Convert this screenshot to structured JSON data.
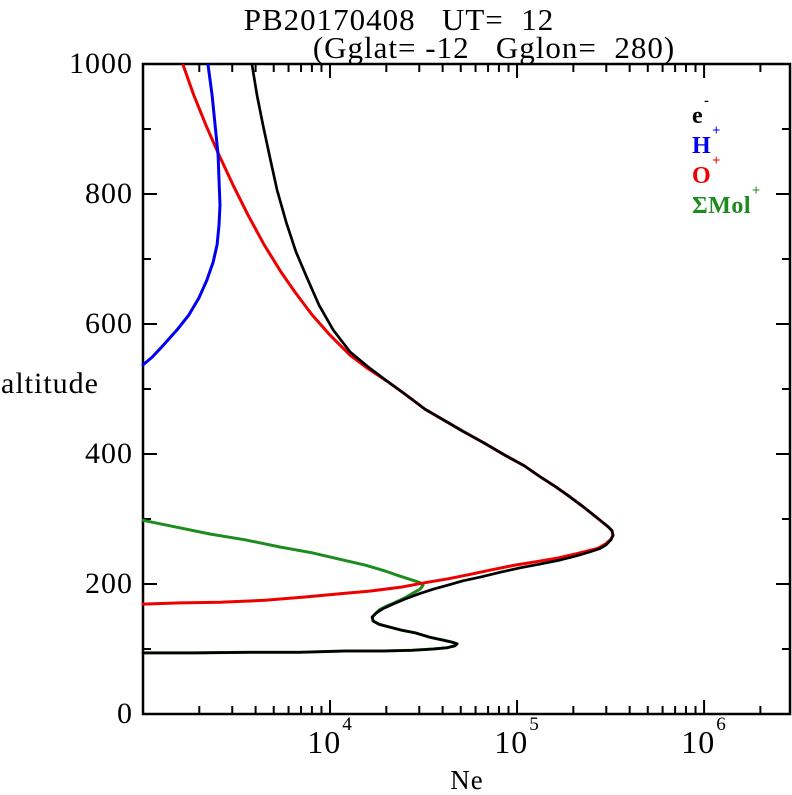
{
  "title": {
    "line1": "PB20170408   UT=  12",
    "line2": "(Gglat= -12   Gglon=  280)"
  },
  "axes": {
    "x": {
      "label": "Ne",
      "scale": "log",
      "range": [
        1000,
        2880000
      ],
      "major_ticks": [
        {
          "value": 10000,
          "base": "10",
          "exp": "4"
        },
        {
          "value": 100000,
          "base": "10",
          "exp": "5"
        },
        {
          "value": 1000000,
          "base": "10",
          "exp": "6"
        }
      ]
    },
    "y": {
      "label": "altitude",
      "range": [
        0,
        1000
      ],
      "major_tick_step": 200,
      "minor_tick_step": 100,
      "ticks": [
        {
          "value": 1000,
          "label": "1000"
        },
        {
          "value": 800,
          "label": "800"
        },
        {
          "value": 600,
          "label": "600"
        },
        {
          "value": 400,
          "label": "400"
        },
        {
          "value": 200,
          "label": "200"
        },
        {
          "value": 0,
          "label": "0"
        }
      ]
    }
  },
  "legend": {
    "position": "top-right",
    "items": [
      {
        "text": "e",
        "sup": "-",
        "color": "#000000"
      },
      {
        "text": "H",
        "sup": "+",
        "color": "#0000ee"
      },
      {
        "text": "O",
        "sup": "+",
        "color": "#ee0000"
      },
      {
        "text": "ΣMol",
        "sup": "+",
        "color": "#1e8b1e"
      }
    ]
  },
  "chart_data": {
    "type": "line",
    "title": "PB20170408   UT=  12",
    "subtitle": "(Gglat= -12   Gglon=  280)",
    "xlabel": "Ne",
    "ylabel": "altitude",
    "x_scale": "log",
    "xlim": [
      1000,
      2880000
    ],
    "ylim": [
      0,
      1000
    ],
    "grid": false,
    "legend_position": "top-right",
    "series": [
      {
        "name": "e-",
        "color": "#000000",
        "stroke_width": 2.7,
        "points_format": [
          "Ne_cm3",
          "altitude_km"
        ],
        "points": [
          [
            3830,
            998
          ],
          [
            4070,
            952
          ],
          [
            4380,
            906
          ],
          [
            4780,
            855
          ],
          [
            5210,
            806
          ],
          [
            5820,
            757
          ],
          [
            6580,
            711
          ],
          [
            7530,
            671
          ],
          [
            8730,
            629
          ],
          [
            10400,
            591
          ],
          [
            12800,
            557
          ],
          [
            16000,
            534
          ],
          [
            20200,
            512
          ],
          [
            25200,
            492
          ],
          [
            32200,
            469
          ],
          [
            41200,
            451
          ],
          [
            51400,
            435
          ],
          [
            66600,
            417
          ],
          [
            86300,
            398
          ],
          [
            109000,
            382
          ],
          [
            133000,
            365
          ],
          [
            162000,
            349
          ],
          [
            192000,
            334
          ],
          [
            223000,
            320
          ],
          [
            252000,
            308
          ],
          [
            281000,
            297
          ],
          [
            307000,
            288
          ],
          [
            322000,
            282
          ],
          [
            326000,
            275
          ],
          [
            318000,
            268
          ],
          [
            299000,
            260
          ],
          [
            275000,
            254
          ],
          [
            243000,
            249
          ],
          [
            207000,
            243
          ],
          [
            170000,
            237
          ],
          [
            134000,
            231
          ],
          [
            104000,
            225
          ],
          [
            81100,
            218
          ],
          [
            64100,
            211
          ],
          [
            51400,
            205
          ],
          [
            42300,
            198
          ],
          [
            35600,
            192
          ],
          [
            29900,
            185
          ],
          [
            25200,
            177
          ],
          [
            21700,
            169
          ],
          [
            19200,
            162
          ],
          [
            17600,
            155
          ],
          [
            16800,
            149
          ],
          [
            17000,
            143
          ],
          [
            18300,
            138
          ],
          [
            20700,
            134
          ],
          [
            24000,
            129
          ],
          [
            28500,
            125
          ],
          [
            34300,
            118
          ],
          [
            39700,
            114
          ],
          [
            44400,
            111
          ],
          [
            47800,
            108
          ],
          [
            46600,
            105
          ],
          [
            42300,
            102
          ],
          [
            35600,
            100
          ],
          [
            27500,
            98
          ],
          [
            19000,
            97
          ],
          [
            12000,
            97
          ],
          [
            6920,
            95
          ],
          [
            3730,
            95
          ],
          [
            1900,
            94
          ],
          [
            1000,
            94
          ]
        ]
      },
      {
        "name": "H+",
        "color": "#0000ee",
        "stroke_width": 3,
        "points_format": [
          "Ne_cm3",
          "altitude_km"
        ],
        "points": [
          [
            2230,
            998
          ],
          [
            2340,
            952
          ],
          [
            2430,
            906
          ],
          [
            2520,
            860
          ],
          [
            2550,
            822
          ],
          [
            2580,
            783
          ],
          [
            2550,
            752
          ],
          [
            2490,
            722
          ],
          [
            2370,
            695
          ],
          [
            2200,
            668
          ],
          [
            1990,
            640
          ],
          [
            1760,
            614
          ],
          [
            1520,
            591
          ],
          [
            1290,
            568
          ],
          [
            1120,
            549
          ],
          [
            1000,
            537
          ]
        ]
      },
      {
        "name": "O+",
        "color": "#ee0000",
        "stroke_width": 3,
        "points_format": [
          "Ne_cm3",
          "altitude_km"
        ],
        "points": [
          [
            1640,
            998
          ],
          [
            1870,
            952
          ],
          [
            2170,
            906
          ],
          [
            2550,
            860
          ],
          [
            3030,
            814
          ],
          [
            3640,
            768
          ],
          [
            4440,
            722
          ],
          [
            5470,
            680
          ],
          [
            6500,
            649
          ],
          [
            8020,
            614
          ],
          [
            10000,
            583
          ],
          [
            12800,
            552
          ],
          [
            16000,
            531
          ],
          [
            20200,
            512
          ],
          [
            25200,
            492
          ],
          [
            32200,
            469
          ],
          [
            41200,
            451
          ],
          [
            51400,
            435
          ],
          [
            66600,
            417
          ],
          [
            86300,
            398
          ],
          [
            109000,
            382
          ],
          [
            133000,
            365
          ],
          [
            162000,
            349
          ],
          [
            192000,
            334
          ],
          [
            223000,
            320
          ],
          [
            252000,
            308
          ],
          [
            281000,
            297
          ],
          [
            307000,
            288
          ],
          [
            322000,
            282
          ],
          [
            326000,
            275
          ],
          [
            318000,
            269
          ],
          [
            299000,
            262
          ],
          [
            271000,
            255
          ],
          [
            238000,
            251
          ],
          [
            204000,
            246
          ],
          [
            166000,
            240
          ],
          [
            130000,
            235
          ],
          [
            97600,
            229
          ],
          [
            73600,
            222
          ],
          [
            56300,
            215
          ],
          [
            42800,
            208
          ],
          [
            32200,
            202
          ],
          [
            23700,
            195
          ],
          [
            16300,
            189
          ],
          [
            11300,
            185
          ],
          [
            7350,
            180
          ],
          [
            4490,
            175
          ],
          [
            2580,
            172
          ],
          [
            1580,
            171
          ],
          [
            1000,
            169
          ]
        ]
      },
      {
        "name": "ΣMol+",
        "color": "#1e8b1e",
        "stroke_width": 3,
        "points_format": [
          "Ne_cm3",
          "altitude_km"
        ],
        "points": [
          [
            1000,
            298
          ],
          [
            1480,
            288
          ],
          [
            2280,
            277
          ],
          [
            3510,
            268
          ],
          [
            5400,
            257
          ],
          [
            8020,
            248
          ],
          [
            11300,
            238
          ],
          [
            15400,
            229
          ],
          [
            19700,
            220
          ],
          [
            23700,
            212
          ],
          [
            27500,
            206
          ],
          [
            30300,
            202
          ],
          [
            31400,
            198
          ],
          [
            30300,
            192
          ],
          [
            27800,
            186
          ],
          [
            24900,
            178
          ],
          [
            22000,
            171
          ],
          [
            19700,
            165
          ],
          [
            18300,
            160
          ],
          [
            17600,
            155
          ],
          [
            16800,
            149
          ],
          [
            17000,
            143
          ],
          [
            18300,
            138
          ],
          [
            20700,
            134
          ],
          [
            24000,
            129
          ],
          [
            28500,
            125
          ],
          [
            34300,
            118
          ],
          [
            39700,
            114
          ],
          [
            44400,
            111
          ],
          [
            47800,
            108
          ],
          [
            46600,
            105
          ],
          [
            42300,
            102
          ],
          [
            35600,
            100
          ],
          [
            27500,
            98
          ],
          [
            19000,
            97
          ],
          [
            12000,
            97
          ],
          [
            6920,
            95
          ],
          [
            3730,
            95
          ],
          [
            1900,
            94
          ],
          [
            1000,
            94
          ]
        ]
      }
    ]
  }
}
